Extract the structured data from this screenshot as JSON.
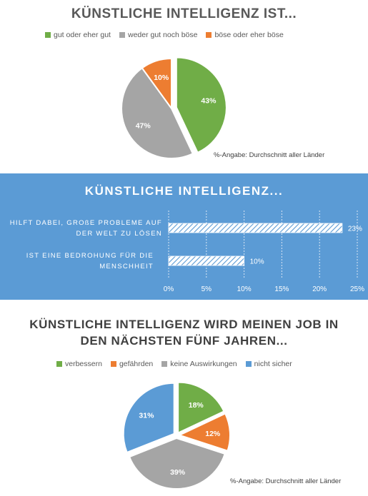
{
  "colors": {
    "green": "#70ad47",
    "gray": "#a5a5a5",
    "orange": "#ed7d31",
    "blue": "#5b9bd5",
    "panel": "#5b9bd5"
  },
  "chart_data": [
    {
      "type": "pie",
      "title": "KÜNSTLICHE INTELLIGENZ IST...",
      "legend_position": "top",
      "slices": [
        {
          "name": "gut oder eher gut",
          "value": 43,
          "label": "43%",
          "color": "#70ad47"
        },
        {
          "name": "weder gut noch böse",
          "value": 47,
          "label": "47%",
          "color": "#a5a5a5"
        },
        {
          "name": "böse oder eher böse",
          "value": 10,
          "label": "10%",
          "color": "#ed7d31"
        }
      ],
      "exploded": "gut oder eher gut",
      "note": "%-Angabe: Durchschnitt aller Länder"
    },
    {
      "type": "bar",
      "orientation": "horizontal",
      "title": "KÜNSTLICHE  INTELLIGENZ...",
      "categories": [
        [
          "HILFT DABEI, GROßE PROBLEME AUF",
          "DER WELT ZU LÖSEN"
        ],
        [
          "IST EINE BEDROHUNG FÜR DIE",
          "MENSCHHEIT"
        ]
      ],
      "values": [
        23,
        10
      ],
      "value_labels": [
        "23%",
        "10%"
      ],
      "xlim": [
        0,
        25
      ],
      "ticks": [
        0,
        5,
        10,
        15,
        20,
        25
      ],
      "tick_labels": [
        "0%",
        "5%",
        "10%",
        "15%",
        "20%",
        "25%"
      ],
      "grid": "vertical dashed",
      "fill": "hatched"
    },
    {
      "type": "pie",
      "title": [
        "KÜNSTLICHE INTELLIGENZ WIRD MEINEN JOB IN",
        "DEN NÄCHSTEN FÜNF JAHREN..."
      ],
      "legend_position": "top",
      "slices": [
        {
          "name": "verbessern",
          "value": 18,
          "label": "18%",
          "color": "#70ad47"
        },
        {
          "name": "gefährden",
          "value": 12,
          "label": "12%",
          "color": "#ed7d31"
        },
        {
          "name": "keine Auswirkungen",
          "value": 39,
          "label": "39%",
          "color": "#a5a5a5"
        },
        {
          "name": "nicht sicher",
          "value": 31,
          "label": "31%",
          "color": "#5b9bd5"
        }
      ],
      "exploded": "all",
      "note": "%-Angabe: Durchschnitt aller Länder"
    }
  ]
}
